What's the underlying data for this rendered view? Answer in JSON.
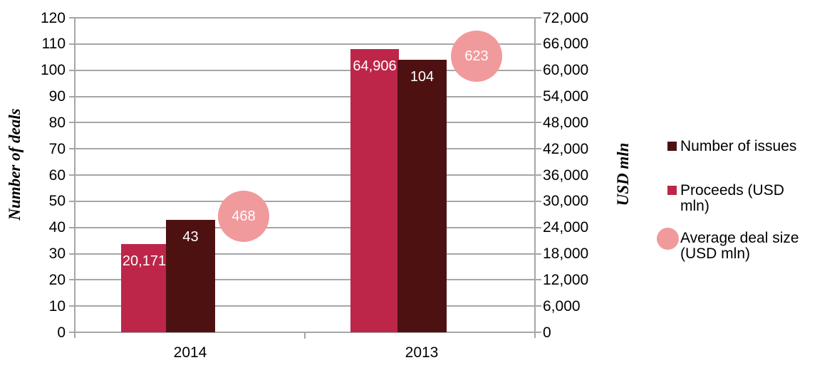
{
  "chart_data": {
    "type": "bar",
    "categories": [
      "2014",
      "2013"
    ],
    "series": [
      {
        "name": "Proceeds (USD mln)",
        "marker": "column",
        "axis": "right",
        "color": "#BD2649",
        "values": [
          20171,
          64906
        ],
        "labels": [
          "20,171",
          "64,906"
        ]
      },
      {
        "name": "Number of issues",
        "marker": "column",
        "axis": "left",
        "color": "#4E1112",
        "values": [
          43,
          104
        ],
        "labels": [
          "43",
          "104"
        ]
      },
      {
        "name": "Average deal size (USD mln)",
        "marker": "bubble",
        "axis": "none",
        "color": "#F09A9C",
        "values": [
          468,
          623
        ],
        "labels": [
          "468",
          "623"
        ]
      }
    ],
    "left_axis": {
      "title": "Number of deals",
      "min": 0,
      "max": 120,
      "step": 10,
      "ticks": [
        "120",
        "110",
        "100",
        "90",
        "80",
        "70",
        "60",
        "50",
        "40",
        "30",
        "20",
        "10",
        "0"
      ]
    },
    "right_axis": {
      "title": "USD mln",
      "min": 0,
      "max": 72000,
      "step": 6000,
      "ticks": [
        "72,000",
        "66,000",
        "60,000",
        "54,000",
        "48,000",
        "42,000",
        "36,000",
        "30,000",
        "24,000",
        "18,000",
        "12,000",
        "6,000",
        "0"
      ]
    },
    "grid": true,
    "legend_position": "right",
    "gridline_color": "#A6A6A6",
    "label_text_color": "#FFFFFF"
  },
  "legend": {
    "items": [
      {
        "label": "Number of issues",
        "marker": "square",
        "color": "#4E1112"
      },
      {
        "label": "Proceeds (USD mln)",
        "marker": "square",
        "color": "#BD2649"
      },
      {
        "label": "Average deal size (USD mln)",
        "marker": "circle",
        "color": "#F09A9C"
      }
    ]
  }
}
